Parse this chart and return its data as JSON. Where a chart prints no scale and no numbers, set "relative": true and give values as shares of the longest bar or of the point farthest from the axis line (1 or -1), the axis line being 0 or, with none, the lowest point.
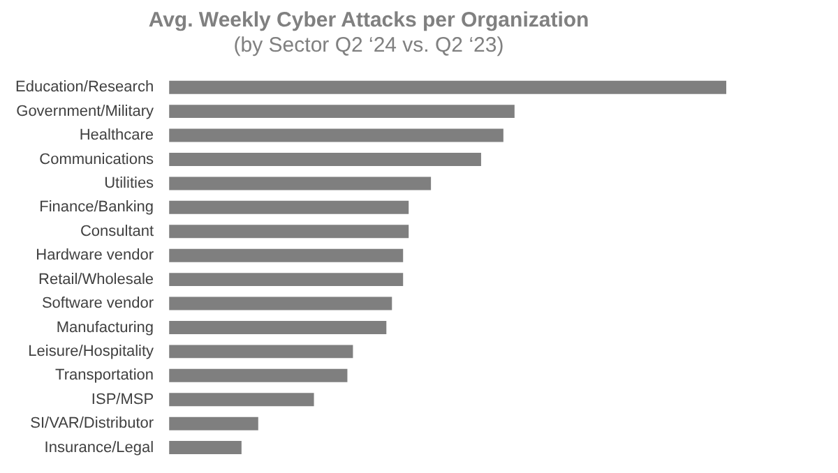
{
  "chart_data": {
    "type": "bar",
    "orientation": "horizontal",
    "relative": true,
    "title": "Avg. Weekly Cyber Attacks per Organization",
    "subtitle": "(by Sector Q2 ‘24 vs. Q2 ‘23)",
    "categories": [
      "Education/Research",
      "Government/Military",
      "Healthcare",
      "Communications",
      "Utilities",
      "Finance/Banking",
      "Consultant",
      "Hardware vendor",
      "Retail/Wholesale",
      "Software vendor",
      "Manufacturing",
      "Leisure/Hospitality",
      "Transportation",
      "ISP/MSP",
      "SI/VAR/Distributor",
      "Insurance/Legal"
    ],
    "values": [
      1,
      0.62,
      0.6,
      0.56,
      0.47,
      0.43,
      0.43,
      0.42,
      0.42,
      0.4,
      0.39,
      0.33,
      0.32,
      0.26,
      0.16,
      0.13
    ],
    "color": "#7f7f7f"
  }
}
